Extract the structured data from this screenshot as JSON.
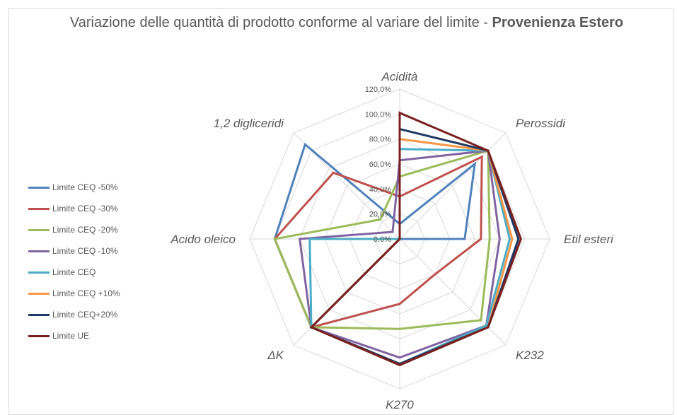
{
  "chart_data": {
    "type": "radar",
    "title": "Variazione delle quantità di prodotto conforme al variare del limite - ",
    "title_bold": "Provenienza Estero",
    "axes": [
      "Acidità",
      "Perossidi",
      "Etil esteri",
      "K232",
      "K270",
      "ΔK",
      "Acido oleico",
      "1,2 digliceridi"
    ],
    "rlim": [
      0,
      120
    ],
    "ticks": [
      "0,0%",
      "20,0%",
      "40,0%",
      "60,0%",
      "80,0%",
      "100,0%",
      "120,0%"
    ],
    "tick_values": [
      0,
      20,
      40,
      60,
      80,
      100,
      120
    ],
    "grid": true,
    "legend_position": "left",
    "series": [
      {
        "name": "Limite CEQ -50%",
        "color": "#4f81bd",
        "values": [
          12,
          85,
          52,
          0,
          0,
          100,
          100,
          107
        ]
      },
      {
        "name": "Limite CEQ -30%",
        "color": "#c0504d",
        "values": [
          34,
          93,
          65,
          40,
          52,
          100,
          100,
          75
        ]
      },
      {
        "name": "Limite CEQ -20%",
        "color": "#9bbb59",
        "values": [
          50,
          100,
          72,
          92,
          72,
          100,
          100,
          22
        ]
      },
      {
        "name": "Limite CEQ -10%",
        "color": "#8064a2",
        "values": [
          63,
          100,
          80,
          98,
          95,
          100,
          80,
          8
        ]
      },
      {
        "name": "Limite CEQ",
        "color": "#4bacc6",
        "values": [
          72,
          100,
          88,
          98,
          100,
          100,
          72,
          0
        ]
      },
      {
        "name": "Limite CEQ +10%",
        "color": "#f79646",
        "values": [
          80,
          100,
          90,
          100,
          100,
          100,
          0,
          0
        ]
      },
      {
        "name": "Limite CEQ+20%",
        "color": "#1f3864",
        "values": [
          88,
          100,
          95,
          100,
          100,
          100,
          0,
          0
        ]
      },
      {
        "name": "Limite UE",
        "color": "#7b2020",
        "values": [
          101,
          100,
          97,
          100,
          101,
          100,
          0,
          0
        ]
      }
    ]
  }
}
